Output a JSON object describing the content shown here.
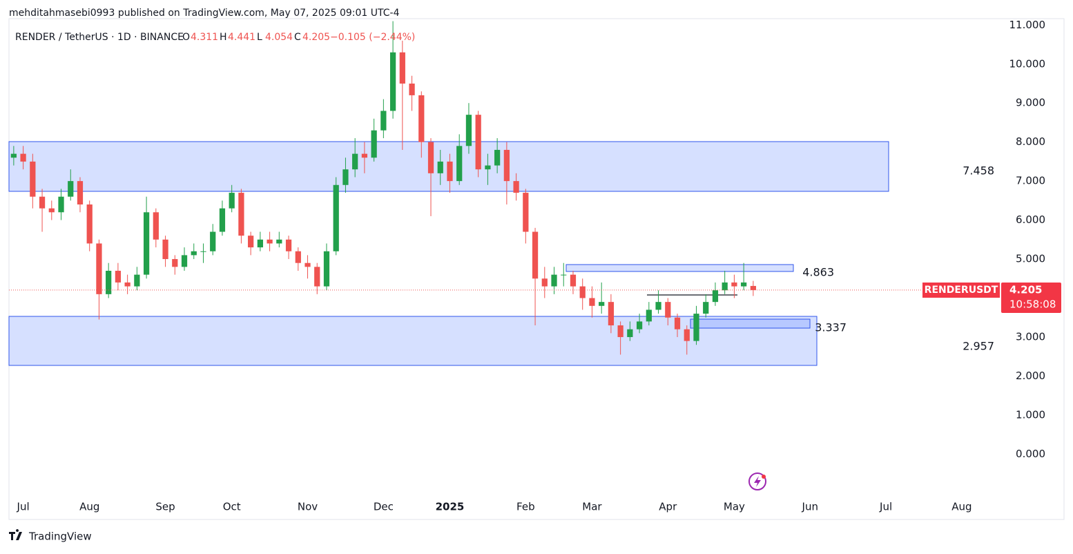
{
  "header": {
    "published": "mehditahmasebi0993 published on TradingView.com, May 07, 2025 09:01 UTC-4"
  },
  "chart_data": {
    "type": "candlestick",
    "symbol": "RENDER / TetherUS · 1D · BINANCE",
    "ohlc_labels": [
      "O",
      "H",
      "L",
      "C"
    ],
    "change": "−0.105 (−2.44%)",
    "up_color": "#22a04b",
    "down_color": "#ef5350",
    "categories": [
      null,
      "Jul",
      null,
      null,
      null,
      null,
      null,
      null,
      "Aug",
      null,
      null,
      null,
      null,
      null,
      null,
      null,
      "Sep",
      null,
      null,
      null,
      null,
      null,
      null,
      "Oct",
      null,
      null,
      null,
      null,
      null,
      null,
      null,
      "Nov",
      null,
      null,
      null,
      null,
      null,
      null,
      null,
      "Dec",
      null,
      null,
      null,
      null,
      null,
      null,
      "2025",
      null,
      null,
      null,
      null,
      null,
      null,
      null,
      "Feb",
      null,
      null,
      null,
      null,
      null,
      null,
      "Mar",
      null,
      null,
      null,
      null,
      null,
      null,
      null,
      "Apr",
      null,
      null,
      null,
      null,
      null,
      null,
      "May",
      null,
      null,
      null,
      null,
      null,
      null,
      null,
      "Jun",
      null,
      null,
      null,
      null,
      null,
      null,
      null,
      "Jul",
      null,
      null,
      null,
      null,
      null,
      null,
      null,
      "Aug",
      null,
      null,
      null
    ],
    "open": [
      7.6,
      7.7,
      7.5,
      6.6,
      6.3,
      6.2,
      6.6,
      7.0,
      6.4,
      5.4,
      4.1,
      4.7,
      4.4,
      4.3,
      4.6,
      6.2,
      5.5,
      5.0,
      4.8,
      5.1,
      5.2,
      5.2,
      5.7,
      6.3,
      6.7,
      5.6,
      5.3,
      5.5,
      5.4,
      5.5,
      5.2,
      4.9,
      4.8,
      4.3,
      5.2,
      6.9,
      7.3,
      7.7,
      7.6,
      8.3,
      8.8,
      10.3,
      9.5,
      9.2,
      8.0,
      7.2,
      7.5,
      7.0,
      7.9,
      8.7,
      7.3,
      7.4,
      7.8,
      7.0,
      6.7,
      5.7,
      4.5,
      4.3,
      4.6,
      4.6,
      4.3,
      4.0,
      3.8,
      3.9,
      3.3,
      3.0,
      3.2,
      3.4,
      3.7,
      3.9,
      3.5,
      3.2,
      2.9,
      3.6,
      3.9,
      4.2,
      4.4,
      4.3,
      4.311,
      null,
      null,
      null,
      null,
      null,
      null,
      null,
      null,
      null,
      null,
      null,
      null,
      null,
      null,
      null,
      null,
      null,
      null,
      null,
      null,
      null,
      null,
      null,
      null,
      null
    ],
    "high": [
      7.9,
      7.9,
      7.7,
      6.8,
      6.5,
      6.8,
      7.3,
      7.1,
      6.5,
      5.5,
      4.9,
      4.9,
      4.6,
      4.8,
      6.6,
      6.3,
      5.6,
      5.1,
      5.3,
      5.4,
      5.4,
      5.9,
      6.5,
      6.9,
      6.8,
      5.7,
      5.7,
      5.7,
      5.7,
      5.6,
      5.3,
      5.1,
      4.9,
      5.4,
      7.1,
      7.6,
      8.1,
      8.0,
      8.6,
      9.1,
      11.1,
      10.6,
      9.7,
      9.3,
      8.1,
      7.8,
      7.7,
      8.2,
      9.0,
      8.8,
      7.7,
      8.1,
      8.0,
      7.2,
      6.8,
      5.8,
      4.8,
      4.8,
      4.9,
      4.7,
      4.5,
      4.3,
      4.4,
      4.1,
      3.4,
      3.4,
      3.6,
      3.9,
      4.2,
      4.0,
      3.6,
      3.3,
      3.8,
      4.1,
      4.4,
      4.7,
      4.6,
      4.9,
      4.441,
      null,
      null,
      null,
      null,
      null,
      null,
      null,
      null,
      null,
      null,
      null,
      null,
      null,
      null,
      null,
      null,
      null,
      null,
      null,
      null,
      null,
      null,
      null,
      null,
      null
    ],
    "low": [
      7.4,
      7.3,
      6.3,
      5.7,
      6.0,
      6.0,
      6.5,
      6.2,
      5.2,
      3.45,
      4.0,
      4.2,
      4.1,
      4.2,
      4.5,
      5.3,
      4.8,
      4.6,
      4.7,
      5.0,
      4.9,
      5.1,
      5.6,
      6.2,
      5.4,
      5.1,
      5.2,
      5.2,
      5.3,
      5.0,
      4.7,
      4.5,
      4.1,
      4.2,
      5.1,
      6.7,
      7.1,
      7.2,
      7.5,
      8.1,
      8.6,
      7.8,
      8.8,
      7.6,
      6.1,
      6.9,
      6.7,
      6.9,
      7.7,
      7.1,
      6.9,
      7.2,
      6.4,
      6.5,
      5.4,
      3.3,
      4.0,
      4.1,
      4.3,
      4.1,
      3.7,
      3.5,
      3.6,
      3.1,
      2.55,
      2.9,
      3.1,
      3.3,
      3.6,
      3.3,
      3.0,
      2.55,
      2.8,
      3.5,
      3.8,
      4.1,
      4.0,
      4.2,
      4.054,
      null,
      null,
      null,
      null,
      null,
      null,
      null,
      null,
      null,
      null,
      null,
      null,
      null,
      null,
      null,
      null,
      null,
      null,
      null,
      null,
      null,
      null,
      null,
      null,
      null
    ],
    "close": [
      7.7,
      7.5,
      6.6,
      6.3,
      6.2,
      6.6,
      7.0,
      6.4,
      5.4,
      4.1,
      4.7,
      4.4,
      4.3,
      4.6,
      6.2,
      5.5,
      5.0,
      4.8,
      5.1,
      5.2,
      5.2,
      5.7,
      6.3,
      6.7,
      5.6,
      5.3,
      5.5,
      5.4,
      5.5,
      5.2,
      4.9,
      4.8,
      4.3,
      5.2,
      6.9,
      7.3,
      7.7,
      7.6,
      8.3,
      8.8,
      10.3,
      9.5,
      9.2,
      8.0,
      7.2,
      7.5,
      7.0,
      7.9,
      8.7,
      7.3,
      7.4,
      7.8,
      7.0,
      6.7,
      5.7,
      4.5,
      4.3,
      4.6,
      4.6,
      4.3,
      4.0,
      3.8,
      3.9,
      3.3,
      3.0,
      3.2,
      3.4,
      3.7,
      3.9,
      3.5,
      3.2,
      2.9,
      3.6,
      3.9,
      4.2,
      4.4,
      4.3,
      4.4,
      4.205,
      null,
      null,
      null,
      null,
      null,
      null,
      null,
      null,
      null,
      null,
      null,
      null,
      null,
      null,
      null,
      null,
      null,
      null,
      null,
      null,
      null,
      null,
      null,
      null,
      null
    ],
    "ylim": [
      -1.0,
      11.2
    ],
    "yticks": [
      {
        "value": 0,
        "label": "0.000"
      },
      {
        "value": 1,
        "label": "1.000"
      },
      {
        "value": 2,
        "label": "2.000"
      },
      {
        "value": 3,
        "label": "3.000"
      },
      {
        "value": 4,
        "label": "4.000"
      },
      {
        "value": 5,
        "label": "5.000"
      },
      {
        "value": 6,
        "label": "6.000"
      },
      {
        "value": 7,
        "label": "7.000"
      },
      {
        "value": 8,
        "label": "8.000"
      },
      {
        "value": 9,
        "label": "9.000"
      },
      {
        "value": 10,
        "label": "10.000"
      },
      {
        "value": 11,
        "label": "11.000"
      }
    ],
    "level_labels": [
      7.458,
      4.863,
      3.337,
      2.957
    ],
    "ticker_label": "RENDERUSDT",
    "countdown": "10:58:08"
  },
  "footer": {
    "brand": "TradingView"
  }
}
